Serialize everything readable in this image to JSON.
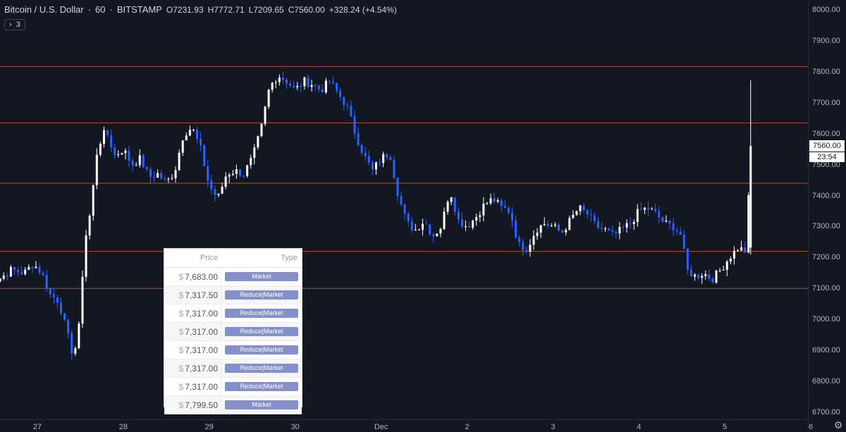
{
  "header": {
    "symbol": "Bitcoin / U.S. Dollar",
    "interval": "60",
    "exchange": "BITSTAMP",
    "open": "O7231.93",
    "high": "H7772.71",
    "low": "L7209.65",
    "close": "C7560.00",
    "change": "+328.24 (+4.54%)"
  },
  "collapse_button": {
    "icon": "chevron-right-icon",
    "count": "3"
  },
  "price_axis": {
    "ticks": [
      "8000.00",
      "7900.00",
      "7800.00",
      "7700.00",
      "7600.00",
      "7500.00",
      "7400.00",
      "7300.00",
      "7200.00",
      "7100.00",
      "7000.00",
      "6900.00",
      "6800.00",
      "6700.00"
    ],
    "last_price": "7560.00",
    "countdown": "23:54"
  },
  "time_axis": {
    "ticks": [
      "27",
      "28",
      "29",
      "30",
      "Dec",
      "2",
      "3",
      "4",
      "5",
      "6"
    ]
  },
  "colors": {
    "background": "#131722",
    "up_candle": "#ffffff",
    "down_candle": "#2962ff",
    "level_line": "#b5502c",
    "order_button": "#8590c8"
  },
  "chart_data": {
    "type": "candlestick",
    "ylim": [
      6675,
      8020
    ],
    "x_days": [
      "27",
      "28",
      "29",
      "30",
      "Dec",
      "2",
      "3",
      "4",
      "5",
      "6"
    ],
    "horizontal_levels": [
      7817,
      7635,
      7440,
      7220,
      7100
    ],
    "last_close": 7560.0,
    "close_path": [
      [
        26.55,
        7130
      ],
      [
        26.7,
        7160
      ],
      [
        26.85,
        7150
      ],
      [
        26.95,
        7180
      ],
      [
        27.05,
        7150
      ],
      [
        27.15,
        7080
      ],
      [
        27.25,
        7060
      ],
      [
        27.35,
        6950
      ],
      [
        27.42,
        6880
      ],
      [
        27.48,
        6960
      ],
      [
        27.55,
        7250
      ],
      [
        27.62,
        7350
      ],
      [
        27.7,
        7560
      ],
      [
        27.8,
        7610
      ],
      [
        27.9,
        7530
      ],
      [
        28.0,
        7550
      ],
      [
        28.1,
        7500
      ],
      [
        28.2,
        7520
      ],
      [
        28.3,
        7460
      ],
      [
        28.4,
        7470
      ],
      [
        28.5,
        7440
      ],
      [
        28.6,
        7480
      ],
      [
        28.7,
        7600
      ],
      [
        28.8,
        7620
      ],
      [
        28.9,
        7550
      ],
      [
        29.0,
        7430
      ],
      [
        29.1,
        7390
      ],
      [
        29.2,
        7470
      ],
      [
        29.3,
        7480
      ],
      [
        29.4,
        7470
      ],
      [
        29.5,
        7520
      ],
      [
        29.6,
        7610
      ],
      [
        29.7,
        7750
      ],
      [
        29.8,
        7790
      ],
      [
        29.9,
        7770
      ],
      [
        30.0,
        7740
      ],
      [
        30.1,
        7770
      ],
      [
        30.2,
        7760
      ],
      [
        30.3,
        7740
      ],
      [
        30.4,
        7770
      ],
      [
        30.5,
        7730
      ],
      [
        30.6,
        7690
      ],
      [
        30.7,
        7600
      ],
      [
        30.8,
        7530
      ],
      [
        30.9,
        7480
      ],
      [
        31.0,
        7520
      ],
      [
        31.1,
        7540
      ],
      [
        31.2,
        7400
      ],
      [
        31.3,
        7310
      ],
      [
        31.4,
        7290
      ],
      [
        31.5,
        7320
      ],
      [
        31.6,
        7270
      ],
      [
        31.7,
        7300
      ],
      [
        31.8,
        7420
      ],
      [
        31.9,
        7320
      ],
      [
        32.0,
        7300
      ],
      [
        32.1,
        7330
      ],
      [
        32.2,
        7370
      ],
      [
        32.3,
        7390
      ],
      [
        32.4,
        7360
      ],
      [
        32.5,
        7350
      ],
      [
        32.6,
        7240
      ],
      [
        32.7,
        7230
      ],
      [
        32.8,
        7290
      ],
      [
        32.9,
        7310
      ],
      [
        33.0,
        7300
      ],
      [
        33.1,
        7280
      ],
      [
        33.2,
        7320
      ],
      [
        33.3,
        7360
      ],
      [
        33.4,
        7340
      ],
      [
        33.5,
        7300
      ],
      [
        33.6,
        7290
      ],
      [
        33.7,
        7270
      ],
      [
        33.8,
        7290
      ],
      [
        33.9,
        7310
      ],
      [
        34.0,
        7350
      ],
      [
        34.1,
        7360
      ],
      [
        34.2,
        7340
      ],
      [
        34.3,
        7310
      ],
      [
        34.4,
        7300
      ],
      [
        34.5,
        7270
      ],
      [
        34.55,
        7160
      ],
      [
        34.65,
        7140
      ],
      [
        34.75,
        7150
      ],
      [
        34.85,
        7130
      ],
      [
        34.95,
        7160
      ],
      [
        35.05,
        7200
      ],
      [
        35.15,
        7230
      ],
      [
        35.25,
        7220
      ],
      [
        35.3,
        7560
      ]
    ]
  },
  "order_table": {
    "headers": {
      "price": "Price",
      "type": "Type"
    },
    "currency": "$",
    "rows": [
      {
        "price": "7,683.00",
        "type": "Market"
      },
      {
        "price": "7,317.50",
        "type": "Reduce|Market"
      },
      {
        "price": "7,317.00",
        "type": "Reduce|Market"
      },
      {
        "price": "7,317.00",
        "type": "Reduce|Market"
      },
      {
        "price": "7,317.00",
        "type": "Reduce|Market"
      },
      {
        "price": "7,317.00",
        "type": "Reduce|Market"
      },
      {
        "price": "7,317.00",
        "type": "Reduce|Market"
      },
      {
        "price": "7,799.50",
        "type": "Market"
      }
    ]
  }
}
